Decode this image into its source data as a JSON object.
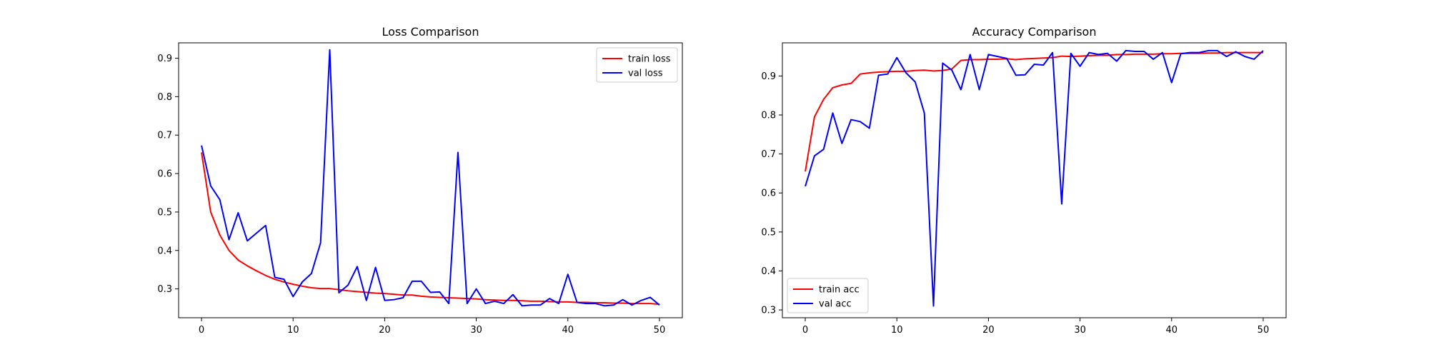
{
  "chart_data": [
    {
      "type": "line",
      "title": "Loss Comparison",
      "xlabel": "",
      "ylabel": "",
      "xlim": [
        -2.5,
        52.5
      ],
      "ylim": [
        0.225,
        0.94
      ],
      "xticks": [
        0,
        10,
        20,
        30,
        40,
        50
      ],
      "yticks": [
        0.3,
        0.4,
        0.5,
        0.6,
        0.7,
        0.8,
        0.9
      ],
      "ytick_decimals": 1,
      "legend_position": "top-right",
      "grid": false,
      "x": [
        0,
        1,
        2,
        3,
        4,
        5,
        6,
        7,
        8,
        9,
        10,
        11,
        12,
        13,
        14,
        15,
        16,
        17,
        18,
        19,
        20,
        21,
        22,
        23,
        24,
        25,
        26,
        27,
        28,
        29,
        30,
        31,
        32,
        33,
        34,
        35,
        36,
        37,
        38,
        39,
        40,
        41,
        42,
        43,
        44,
        45,
        46,
        47,
        48,
        49,
        50
      ],
      "series": [
        {
          "name": "train loss",
          "color": "#ff0000",
          "values": [
            0.655,
            0.5,
            0.44,
            0.4,
            0.375,
            0.36,
            0.347,
            0.335,
            0.325,
            0.318,
            0.312,
            0.307,
            0.303,
            0.301,
            0.301,
            0.298,
            0.295,
            0.293,
            0.291,
            0.289,
            0.288,
            0.286,
            0.284,
            0.284,
            0.281,
            0.279,
            0.278,
            0.277,
            0.276,
            0.275,
            0.274,
            0.272,
            0.271,
            0.27,
            0.27,
            0.269,
            0.268,
            0.268,
            0.267,
            0.266,
            0.266,
            0.265,
            0.265,
            0.264,
            0.264,
            0.263,
            0.263,
            0.262,
            0.262,
            0.262,
            0.26
          ]
        },
        {
          "name": "val loss",
          "color": "#0000ff",
          "values": [
            0.673,
            0.568,
            0.532,
            0.428,
            0.498,
            0.425,
            0.445,
            0.465,
            0.33,
            0.325,
            0.28,
            0.318,
            0.34,
            0.42,
            0.922,
            0.29,
            0.31,
            0.358,
            0.27,
            0.356,
            0.27,
            0.272,
            0.277,
            0.32,
            0.32,
            0.291,
            0.292,
            0.262,
            0.655,
            0.262,
            0.3,
            0.262,
            0.268,
            0.262,
            0.285,
            0.256,
            0.258,
            0.258,
            0.275,
            0.262,
            0.338,
            0.265,
            0.262,
            0.262,
            0.256,
            0.258,
            0.272,
            0.258,
            0.27,
            0.278,
            0.258
          ]
        }
      ]
    },
    {
      "type": "line",
      "title": "Accuracy Comparison",
      "xlabel": "",
      "ylabel": "",
      "xlim": [
        -2.5,
        52.5
      ],
      "ylim": [
        0.28,
        0.985
      ],
      "xticks": [
        0,
        10,
        20,
        30,
        40,
        50
      ],
      "yticks": [
        0.3,
        0.4,
        0.5,
        0.6,
        0.7,
        0.8,
        0.9
      ],
      "ytick_decimals": 1,
      "legend_position": "bottom-left",
      "grid": false,
      "x": [
        0,
        1,
        2,
        3,
        4,
        5,
        6,
        7,
        8,
        9,
        10,
        11,
        12,
        13,
        14,
        15,
        16,
        17,
        18,
        19,
        20,
        21,
        22,
        23,
        24,
        25,
        26,
        27,
        28,
        29,
        30,
        31,
        32,
        33,
        34,
        35,
        36,
        37,
        38,
        39,
        40,
        41,
        42,
        43,
        44,
        45,
        46,
        47,
        48,
        49,
        50
      ],
      "series": [
        {
          "name": "train acc",
          "color": "#ff0000",
          "values": [
            0.655,
            0.795,
            0.84,
            0.87,
            0.877,
            0.881,
            0.905,
            0.908,
            0.91,
            0.911,
            0.912,
            0.912,
            0.914,
            0.915,
            0.913,
            0.914,
            0.918,
            0.94,
            0.942,
            0.942,
            0.943,
            0.943,
            0.944,
            0.942,
            0.944,
            0.945,
            0.946,
            0.947,
            0.951,
            0.95,
            0.951,
            0.952,
            0.953,
            0.953,
            0.955,
            0.955,
            0.956,
            0.956,
            0.956,
            0.957,
            0.957,
            0.958,
            0.958,
            0.958,
            0.959,
            0.959,
            0.96,
            0.96,
            0.96,
            0.96,
            0.96
          ]
        },
        {
          "name": "val acc",
          "color": "#0000ff",
          "values": [
            0.617,
            0.695,
            0.712,
            0.805,
            0.727,
            0.788,
            0.783,
            0.766,
            0.902,
            0.905,
            0.947,
            0.908,
            0.885,
            0.805,
            0.31,
            0.933,
            0.915,
            0.865,
            0.955,
            0.865,
            0.955,
            0.95,
            0.945,
            0.902,
            0.903,
            0.93,
            0.928,
            0.96,
            0.572,
            0.958,
            0.925,
            0.96,
            0.955,
            0.958,
            0.938,
            0.965,
            0.963,
            0.963,
            0.943,
            0.96,
            0.883,
            0.957,
            0.96,
            0.96,
            0.965,
            0.965,
            0.95,
            0.962,
            0.95,
            0.943,
            0.965
          ]
        }
      ]
    }
  ]
}
